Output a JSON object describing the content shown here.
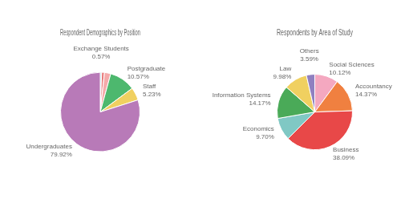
{
  "chart_data": [
    {
      "type": "pie",
      "title": "Respondent Demographics by Position",
      "categories": [
        "Exchange Students",
        null,
        null,
        "Postgraduate",
        "Staff",
        "Undergraduates"
      ],
      "values": [
        0.57,
        1.14,
        2.57,
        10.57,
        5.23,
        79.92
      ],
      "value_labels": [
        "0.57%",
        null,
        null,
        "10.57%",
        "5.23%",
        "79.92%"
      ],
      "colors": [
        "#6ecdd1",
        "#e87878",
        "#f4aaaa",
        "#4db86e",
        "#f0d060",
        "#b87ab8"
      ],
      "data_labels": true
    },
    {
      "type": "pie",
      "title": "Respondents by Area of Study",
      "categories": [
        "Social Sciences",
        "Accountancy",
        "Business",
        "Economics",
        "Information Systems",
        "Law",
        "Others"
      ],
      "values": [
        10.12,
        14.37,
        38.09,
        9.7,
        14.17,
        9.98,
        3.59
      ],
      "value_labels": [
        "10.12%",
        "14.37%",
        "38.09%",
        "9.70%",
        "14.17%",
        "9.98%",
        "3.59%"
      ],
      "colors": [
        "#f4a8c0",
        "#f08040",
        "#e84848",
        "#80c8c4",
        "#4aaa58",
        "#f0d060",
        "#9080c0"
      ],
      "data_labels": true
    }
  ]
}
